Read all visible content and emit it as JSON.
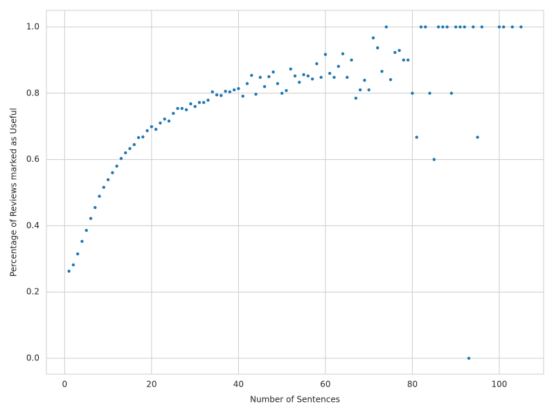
{
  "chart_data": {
    "type": "scatter",
    "x_label": "Number of Sentences",
    "y_label": "Percentage of Reviews marked as Useful",
    "color": "#2078b4",
    "grid": true,
    "xlim": [
      -4.2,
      110.2
    ],
    "ylim": [
      -0.048,
      1.05
    ],
    "xticks": [
      0,
      20,
      40,
      60,
      80,
      100
    ],
    "yticks": [
      {
        "value": 0,
        "label": "0.0"
      },
      0.2,
      0.4,
      0.6,
      0.8,
      {
        "value": 1,
        "label": "1.0"
      }
    ],
    "x": [
      1,
      2,
      3,
      4,
      5,
      6,
      7,
      8,
      9,
      10,
      11,
      12,
      13,
      14,
      15,
      16,
      17,
      18,
      19,
      20,
      21,
      22,
      23,
      24,
      25,
      26,
      27,
      28,
      29,
      30,
      31,
      32,
      33,
      34,
      35,
      36,
      37,
      38,
      39,
      40,
      41,
      42,
      43,
      44,
      45,
      46,
      47,
      48,
      49,
      50,
      51,
      52,
      53,
      54,
      55,
      56,
      57,
      58,
      59,
      60,
      61,
      62,
      63,
      64,
      65,
      66,
      67,
      68,
      69,
      70,
      71,
      72,
      73,
      74,
      75,
      76,
      77,
      78,
      79,
      80,
      81,
      82,
      83,
      84,
      85,
      86,
      87,
      88,
      89,
      90,
      91,
      92,
      93,
      94,
      95,
      96,
      100,
      101,
      103,
      105
    ],
    "y": [
      0.263,
      0.282,
      0.315,
      0.353,
      0.386,
      0.422,
      0.455,
      0.489,
      0.516,
      0.539,
      0.56,
      0.58,
      0.603,
      0.62,
      0.633,
      0.645,
      0.666,
      0.668,
      0.687,
      0.699,
      0.691,
      0.71,
      0.722,
      0.716,
      0.739,
      0.754,
      0.754,
      0.75,
      0.768,
      0.76,
      0.772,
      0.772,
      0.779,
      0.804,
      0.795,
      0.793,
      0.806,
      0.804,
      0.81,
      0.814,
      0.791,
      0.829,
      0.854,
      0.797,
      0.848,
      0.82,
      0.85,
      0.864,
      0.829,
      0.8,
      0.808,
      0.873,
      0.852,
      0.833,
      0.856,
      0.852,
      0.843,
      0.889,
      0.848,
      0.917,
      0.86,
      0.848,
      0.881,
      0.919,
      0.848,
      0.9,
      0.785,
      0.81,
      0.839,
      0.81,
      0.967,
      0.937,
      0.866,
      1,
      0.841,
      0.923,
      0.929,
      0.9,
      0.9,
      0.8,
      0.667,
      1,
      1,
      0.8,
      0.6,
      1,
      1,
      1,
      0.8,
      1,
      1,
      1,
      0,
      1,
      0.667,
      1,
      1,
      1,
      1,
      1
    ]
  }
}
